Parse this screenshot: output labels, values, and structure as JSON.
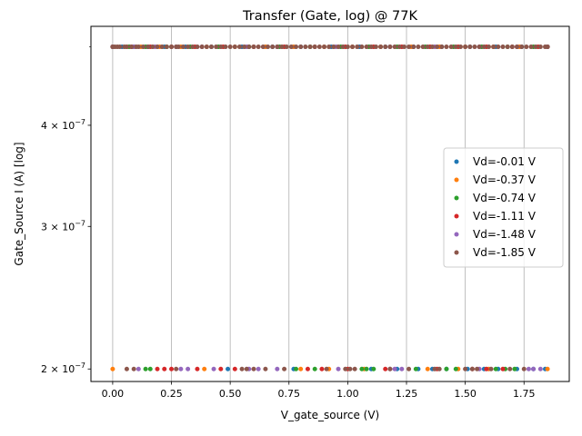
{
  "chart_data": {
    "type": "scatter",
    "title": "Transfer (Gate, log) @ 77K",
    "xlabel": "V_gate_source (V)",
    "ylabel": "Gate_Source I (A) [log]",
    "xlim": [
      -0.0925,
      1.9425
    ],
    "ylim": [
      1.93e-07,
      5.3e-07
    ],
    "yscale": "log",
    "grid": "vertical",
    "legend_position": "center-right",
    "x_ticks": [
      {
        "value": 0.0,
        "label": "0.00"
      },
      {
        "value": 0.25,
        "label": "0.25"
      },
      {
        "value": 0.5,
        "label": "0.50"
      },
      {
        "value": 0.75,
        "label": "0.75"
      },
      {
        "value": 1.0,
        "label": "1.00"
      },
      {
        "value": 1.25,
        "label": "1.25"
      },
      {
        "value": 1.5,
        "label": "1.50"
      },
      {
        "value": 1.75,
        "label": "1.75"
      }
    ],
    "y_ticks": [
      {
        "value": 2e-07,
        "mantissa": "2",
        "exp": "−7"
      },
      {
        "value": 3e-07,
        "mantissa": "3",
        "exp": "−7"
      },
      {
        "value": 4e-07,
        "mantissa": "4",
        "exp": "−7"
      }
    ],
    "levels": [
      5e-07,
      2e-07
    ],
    "series": [
      {
        "name": "Vd=-0.01 V",
        "color": "#1f77b4",
        "low_x": [
          0.49,
          0.77,
          1.1,
          1.21,
          1.3,
          1.36,
          1.42,
          1.51,
          1.58,
          1.64,
          1.72,
          1.79,
          1.84
        ],
        "high_x": [
          0.0,
          0.04,
          0.09,
          0.15,
          0.22,
          0.31,
          0.42,
          0.55,
          0.68,
          0.8,
          0.93,
          1.05,
          1.16,
          1.28,
          1.4,
          1.52,
          1.63,
          1.74,
          1.85
        ]
      },
      {
        "name": "Vd=-0.37 V",
        "color": "#ff7f0e",
        "low_x": [
          0.0,
          0.39,
          0.8,
          0.92,
          1.07,
          1.34,
          1.47,
          1.6,
          1.85
        ],
        "high_x": [
          0.0,
          0.06,
          0.12,
          0.2,
          0.29,
          0.4,
          0.52,
          0.65,
          0.77,
          0.9,
          1.02,
          1.14,
          1.27,
          1.39,
          1.5,
          1.62,
          1.73,
          1.85
        ]
      },
      {
        "name": "Vd=-0.74 V",
        "color": "#2ca02c",
        "low_x": [
          0.14,
          0.16,
          0.78,
          0.86,
          1.06,
          1.08,
          1.11,
          1.29,
          1.42,
          1.46,
          1.63,
          1.67,
          1.71
        ],
        "high_x": [
          0.0,
          0.07,
          0.14,
          0.23,
          0.33,
          0.45,
          0.58,
          0.71,
          0.84,
          0.97,
          1.09,
          1.21,
          1.33,
          1.45,
          1.57,
          1.68,
          1.79,
          1.85
        ]
      },
      {
        "name": "Vd=-1.11 V",
        "color": "#d62728",
        "low_x": [
          0.19,
          0.22,
          0.25,
          0.36,
          0.46,
          0.52,
          0.83,
          0.89,
          1.0,
          1.16,
          1.38,
          1.53,
          1.59,
          1.66
        ],
        "high_x": [
          0.0,
          0.08,
          0.16,
          0.25,
          0.35,
          0.47,
          0.6,
          0.73,
          0.86,
          0.99,
          1.11,
          1.23,
          1.35,
          1.47,
          1.59,
          1.7,
          1.81,
          1.85
        ]
      },
      {
        "name": "Vd=-1.48 V",
        "color": "#9467bd",
        "low_x": [
          0.11,
          0.29,
          0.32,
          0.43,
          0.58,
          0.62,
          0.7,
          0.96,
          1.18,
          1.2,
          1.23,
          1.56,
          1.77,
          1.79,
          1.82
        ],
        "high_x": [
          0.0,
          0.09,
          0.18,
          0.27,
          0.38,
          0.57,
          0.7,
          0.95,
          1.18,
          1.37,
          1.56,
          1.72,
          1.85
        ]
      },
      {
        "name": "Vd=-1.85 V",
        "color": "#8c564b",
        "low_x": [
          0.06,
          0.09,
          0.27,
          0.55,
          0.57,
          0.6,
          0.65,
          0.73,
          0.91,
          0.99,
          1.01,
          1.03,
          1.18,
          1.26,
          1.37,
          1.39,
          1.5,
          1.53,
          1.55,
          1.61,
          1.69,
          1.75
        ],
        "high_x": [
          0.0,
          0.01,
          0.02,
          0.03,
          0.05,
          0.06,
          0.08,
          0.1,
          0.11,
          0.13,
          0.15,
          0.17,
          0.19,
          0.21,
          0.23,
          0.25,
          0.27,
          0.28,
          0.3,
          0.32,
          0.34,
          0.36,
          0.38,
          0.4,
          0.42,
          0.44,
          0.46,
          0.48,
          0.5,
          0.52,
          0.54,
          0.56,
          0.58,
          0.6,
          0.62,
          0.64,
          0.66,
          0.68,
          0.7,
          0.72,
          0.74,
          0.76,
          0.78,
          0.8,
          0.82,
          0.84,
          0.86,
          0.88,
          0.9,
          0.92,
          0.94,
          0.96,
          0.98,
          1.0,
          1.02,
          1.04,
          1.06,
          1.08,
          1.1,
          1.12,
          1.14,
          1.16,
          1.18,
          1.2,
          1.22,
          1.24,
          1.26,
          1.28,
          1.3,
          1.32,
          1.34,
          1.36,
          1.38,
          1.4,
          1.42,
          1.44,
          1.46,
          1.48,
          1.5,
          1.52,
          1.54,
          1.56,
          1.58,
          1.6,
          1.62,
          1.64,
          1.66,
          1.68,
          1.7,
          1.72,
          1.74,
          1.76,
          1.78,
          1.8,
          1.82,
          1.84,
          1.85
        ]
      }
    ]
  }
}
